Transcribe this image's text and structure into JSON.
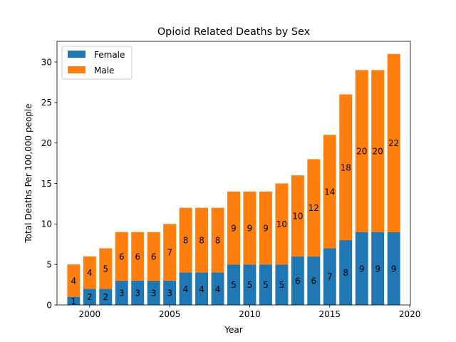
{
  "chart_data": {
    "type": "bar",
    "stacked": true,
    "title": "Opioid Related Deaths by Sex",
    "xlabel": "Year",
    "ylabel": "Total Deaths Per 100,000 people",
    "x": [
      1999,
      2000,
      2001,
      2002,
      2003,
      2004,
      2005,
      2006,
      2007,
      2008,
      2009,
      2010,
      2011,
      2012,
      2013,
      2014,
      2015,
      2016,
      2017,
      2018,
      2019
    ],
    "series": [
      {
        "name": "Female",
        "color": "#1f77b4",
        "values": [
          1,
          2,
          2,
          3,
          3,
          3,
          3,
          4,
          4,
          4,
          5,
          5,
          5,
          5,
          6,
          6,
          7,
          8,
          9,
          9,
          9
        ]
      },
      {
        "name": "Male",
        "color": "#ff7f0e",
        "values": [
          4,
          4,
          5,
          6,
          6,
          6,
          7,
          8,
          8,
          8,
          9,
          9,
          9,
          10,
          10,
          12,
          14,
          18,
          20,
          20,
          22
        ]
      }
    ],
    "xlim": [
      1997.96,
      2020.04
    ],
    "ylim": [
      0,
      32.55
    ],
    "xticks": [
      2000,
      2005,
      2010,
      2015,
      2020
    ],
    "yticks": [
      0,
      5,
      10,
      15,
      20,
      25,
      30
    ],
    "legend_position": "top-left",
    "grid": false
  }
}
